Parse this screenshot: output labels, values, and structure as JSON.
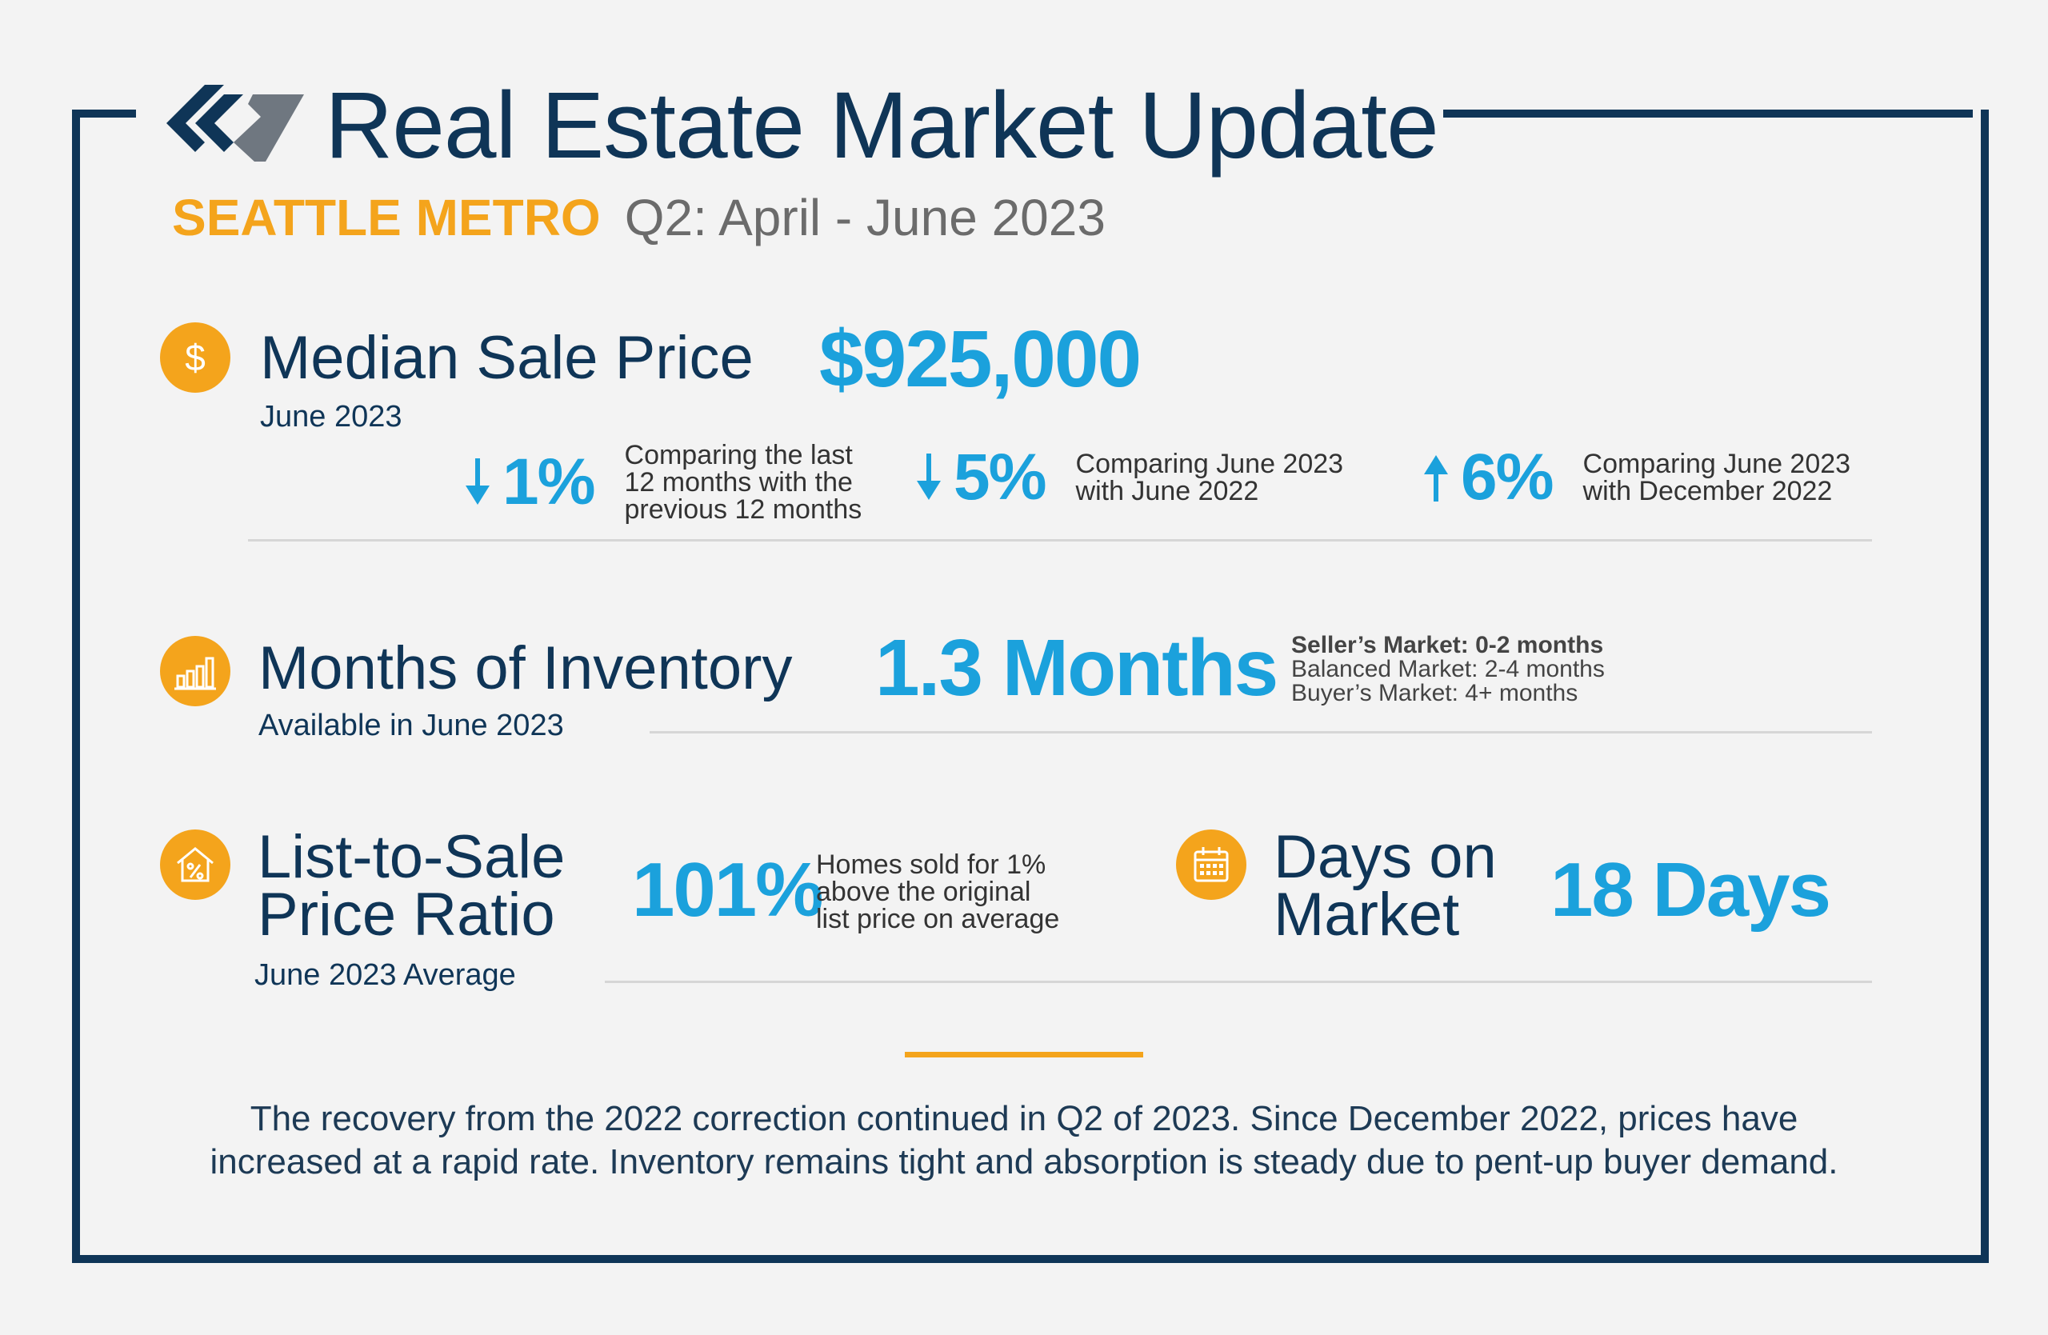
{
  "header": {
    "title": "Real Estate Market Update",
    "region": "SEATTLE METRO",
    "period": "Q2: April - June 2023"
  },
  "colors": {
    "navy": "#0f3557",
    "accent": "#f4a41c",
    "value_blue": "#1ba1dc"
  },
  "median_price": {
    "icon": "dollar-icon",
    "label": "Median Sale Price",
    "sublabel": "June 2023",
    "value": "$925,000",
    "stats": [
      {
        "direction": "down",
        "value": "1%",
        "note_lines": [
          "Comparing the last",
          "12 months with the",
          "previous 12 months"
        ]
      },
      {
        "direction": "down",
        "value": "5%",
        "note_lines": [
          "Comparing June 2023",
          "with June 2022"
        ]
      },
      {
        "direction": "up",
        "value": "6%",
        "note_lines": [
          "Comparing June 2023",
          "with December 2022"
        ]
      }
    ]
  },
  "inventory": {
    "icon": "bar-chart-icon",
    "label": "Months of Inventory",
    "sublabel": "Available in June 2023",
    "value": "1.3 Months",
    "legend": [
      "Seller’s Market: 0-2 months",
      "Balanced Market: 2-4 months",
      "Buyer’s Market: 4+ months"
    ]
  },
  "list_to_sale": {
    "icon": "house-percent-icon",
    "label_lines": [
      "List-to-Sale",
      "Price Ratio"
    ],
    "sublabel": "June 2023 Average",
    "value": "101%",
    "note_lines": [
      "Homes sold for 1%",
      "above the original",
      "list price on average"
    ]
  },
  "days_on_market": {
    "icon": "calendar-icon",
    "label_lines": [
      "Days on",
      "Market"
    ],
    "value": "18 Days"
  },
  "summary": {
    "lines": [
      "The recovery from the 2022 correction continued in Q2 of 2023. Since December 2022, prices have",
      "increased at a rapid rate. Inventory remains tight and absorption is steady due to pent-up buyer demand."
    ]
  }
}
